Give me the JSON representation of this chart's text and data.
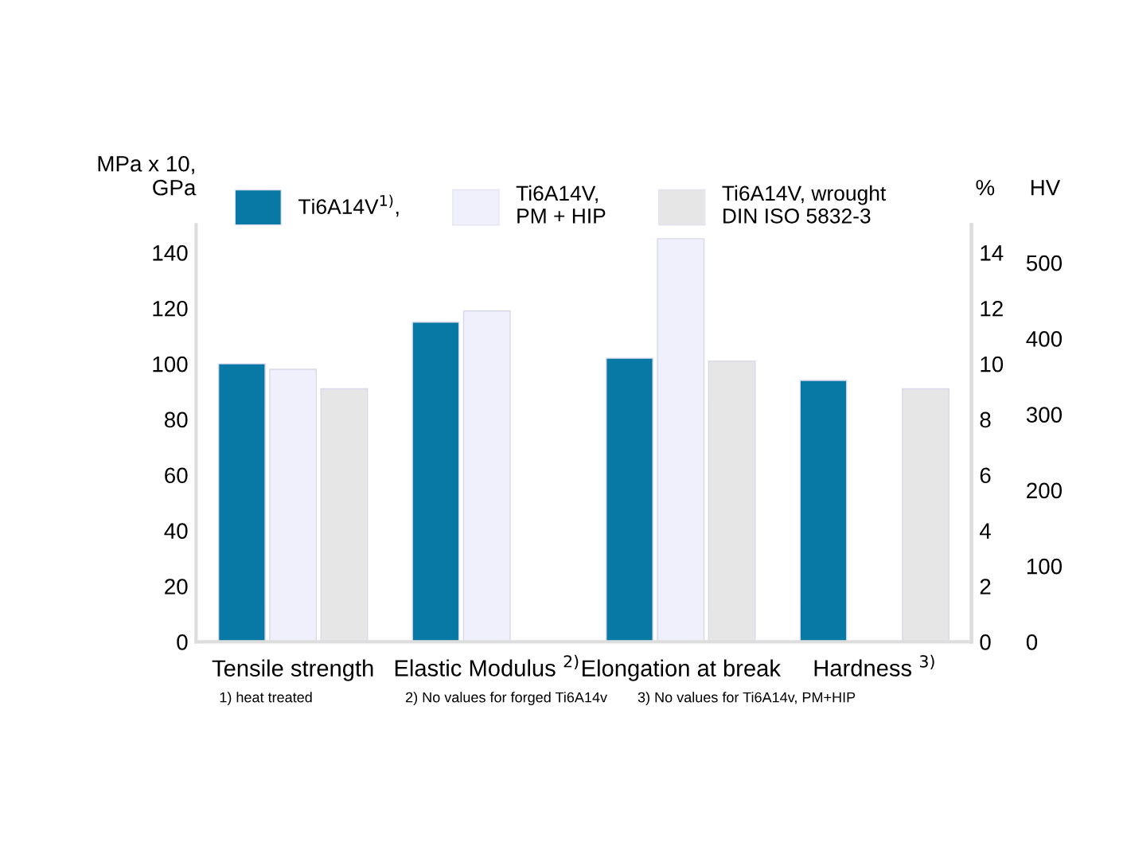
{
  "chart_data": {
    "type": "bar",
    "categories": [
      "Tensile strength",
      "Elastic Modulus $^{2)}$",
      "Elongation at break",
      "Hardness $^{3)}$"
    ],
    "series": [
      {
        "name": "Ti6A14V$^{1)}$,",
        "color": "#0878a4",
        "values": [
          100,
          115,
          102,
          94
        ]
      },
      {
        "name": "Ti6A14V,\nPM + HIP",
        "color": "#f0f0fc",
        "values": [
          98,
          119,
          145,
          null
        ]
      },
      {
        "name": "Ti6A14V, wrought\nDIN ISO 5832-3",
        "color": "#e6e6e6",
        "values": [
          91,
          null,
          101,
          91
        ]
      }
    ],
    "ylabel": "MPa x 10,\nGPa",
    "y2label": "%",
    "y3label": "HV",
    "ylim": [
      0,
      150
    ],
    "yticks": [
      0,
      20,
      40,
      60,
      80,
      100,
      120,
      140
    ],
    "y2lim": [
      0,
      15
    ],
    "y2ticks": [
      0,
      2,
      4,
      6,
      8,
      10,
      12,
      14
    ],
    "y3lim": [
      0,
      550
    ],
    "y3ticks": [
      0,
      100,
      200,
      300,
      400,
      500
    ],
    "annotations": [
      "1) heat treated",
      "2) No values for forged Ti6A14v",
      "3) No values for Ti6A14v, PM+HIP"
    ],
    "legend": "top",
    "grid": false
  }
}
